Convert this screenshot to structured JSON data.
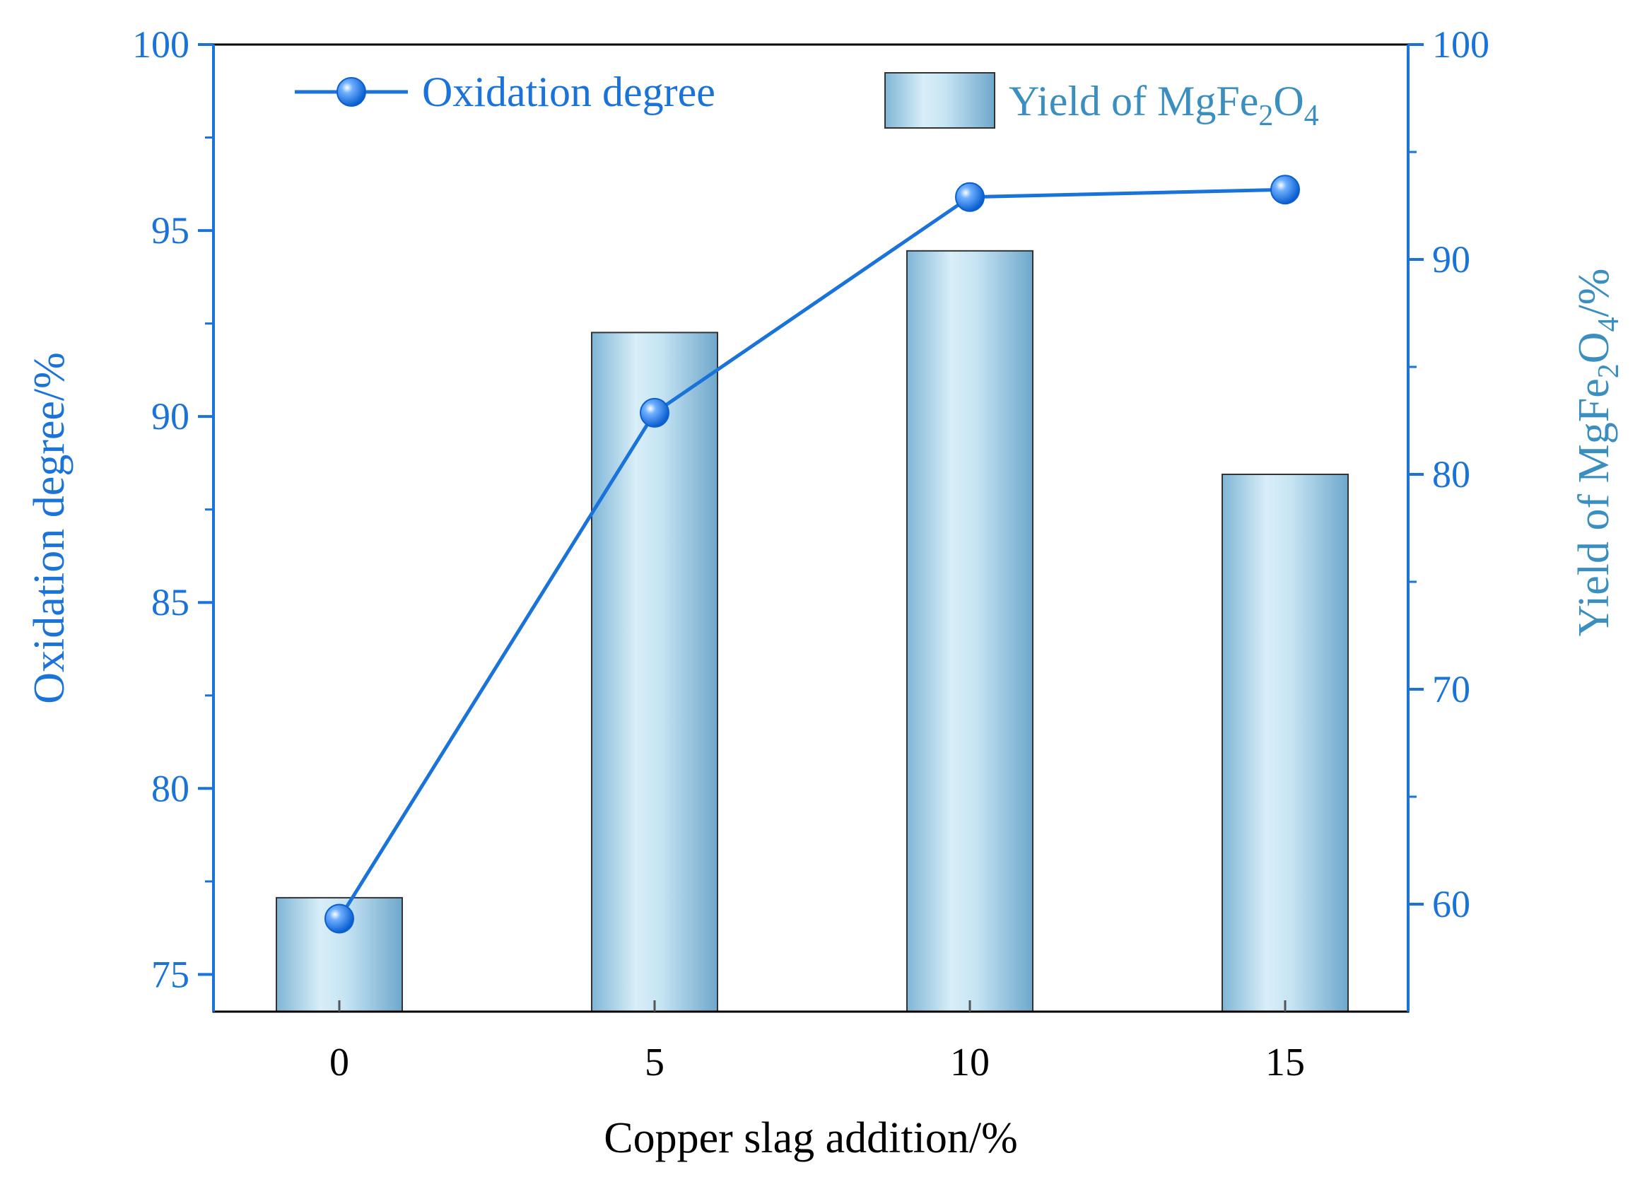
{
  "chart_data": {
    "type": "bar",
    "xlabel": "Copper slag addition/%",
    "ylabel": "Oxidation degree/%",
    "y2label": "Yield of MgFe",
    "y2label_sub": "2",
    "y2label_mid": "O",
    "y2label_sub2": "4",
    "y2label_tail": "/%",
    "categories": [
      "0",
      "5",
      "10",
      "15"
    ],
    "ylim": [
      74,
      100
    ],
    "y2lim": [
      55,
      100
    ],
    "yticks": [
      75,
      80,
      85,
      90,
      95,
      100
    ],
    "y2ticks": [
      60,
      70,
      80,
      90,
      100
    ],
    "series": [
      {
        "name": "Yield of MgFe₂O₄",
        "type": "bar",
        "axis": "right",
        "values": [
          60.3,
          86.6,
          90.4,
          80.0
        ],
        "color": "#9ccbe3"
      },
      {
        "name": "Oxidation degree",
        "type": "line",
        "axis": "left",
        "values": [
          76.5,
          90.1,
          95.9,
          96.1
        ],
        "color": "#1a73d9"
      }
    ],
    "legend": {
      "position": "top",
      "line_label": "Oxidation degree",
      "bar_label_main": "Yield of MgFe",
      "bar_label_sub1": "2",
      "bar_label_mid": "O",
      "bar_label_sub2": "4"
    },
    "grid": false,
    "axis_color": "#1a73d9"
  }
}
